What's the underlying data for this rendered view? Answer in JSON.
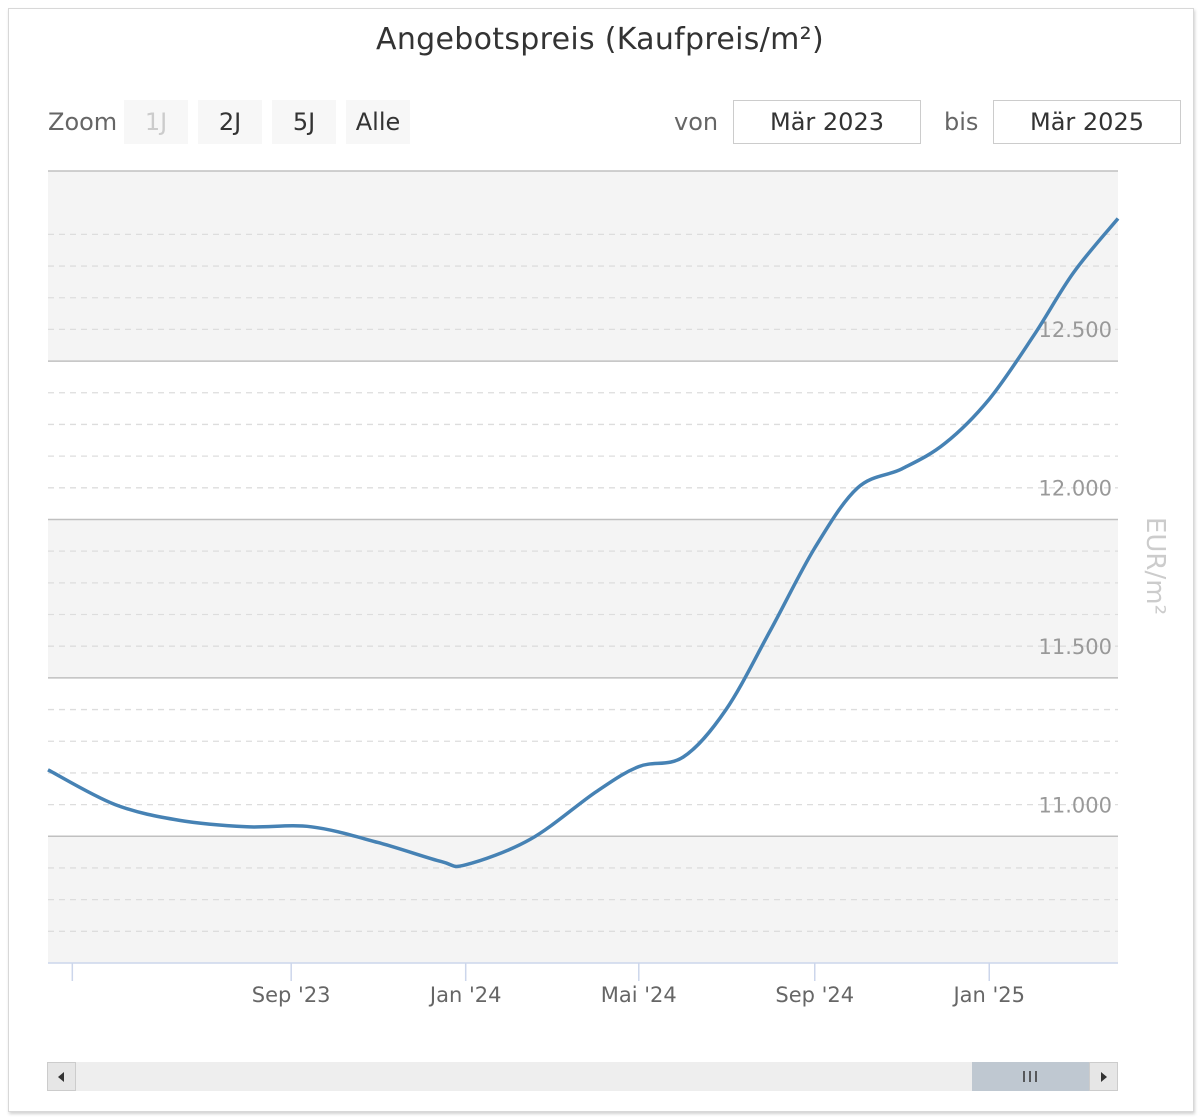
{
  "title": "Angebotspreis (Kaufpreis/m²)",
  "range_selector": {
    "zoom_label": "Zoom",
    "buttons": [
      {
        "label": "1J",
        "disabled": true
      },
      {
        "label": "2J",
        "disabled": false
      },
      {
        "label": "5J",
        "disabled": false
      },
      {
        "label": "Alle",
        "disabled": false
      }
    ],
    "from_label": "von",
    "from_value": "Mär 2023",
    "to_label": "bis",
    "to_value": "Mär 2025"
  },
  "colors": {
    "line": "#4682b4",
    "band": "#f4f4f4",
    "grid": "#dddddd",
    "band_border": "#c0c0c0",
    "axis_label": "#999999",
    "axis_title": "#cccccc"
  },
  "navigator": {
    "handle_icon": "grip-icon",
    "left_arrow_icon": "arrow-left-icon",
    "right_arrow_icon": "arrow-right-icon"
  },
  "chart_data": {
    "type": "line",
    "title": "Angebotspreis (Kaufpreis/m²)",
    "ylabel": "EUR/m²",
    "xlabel": "",
    "x_ticks": [
      "Sep '23",
      "Jan '24",
      "Mai '24",
      "Sep '24",
      "Jan '25"
    ],
    "y_ticks": [
      "11.000",
      "11.500",
      "12.000",
      "12.500"
    ],
    "ylim": [
      10600,
      13100
    ],
    "xlim": [
      "2023-03-15",
      "2025-04-01"
    ],
    "y_axis_position": "right",
    "grid": true,
    "legend": "none",
    "series": [
      {
        "points": [
          {
            "x": "2023-03-15",
            "y": 11210
          },
          {
            "x": "2023-05-01",
            "y": 11100
          },
          {
            "x": "2023-06-15",
            "y": 11050
          },
          {
            "x": "2023-08-01",
            "y": 11030
          },
          {
            "x": "2023-09-15",
            "y": 11030
          },
          {
            "x": "2023-11-01",
            "y": 10980
          },
          {
            "x": "2023-12-15",
            "y": 10920
          },
          {
            "x": "2024-01-01",
            "y": 10910
          },
          {
            "x": "2024-02-15",
            "y": 10990
          },
          {
            "x": "2024-04-01",
            "y": 11140
          },
          {
            "x": "2024-05-01",
            "y": 11220
          },
          {
            "x": "2024-06-01",
            "y": 11250
          },
          {
            "x": "2024-07-01",
            "y": 11400
          },
          {
            "x": "2024-08-01",
            "y": 11650
          },
          {
            "x": "2024-09-01",
            "y": 11910
          },
          {
            "x": "2024-10-01",
            "y": 12100
          },
          {
            "x": "2024-11-01",
            "y": 12160
          },
          {
            "x": "2024-12-01",
            "y": 12240
          },
          {
            "x": "2025-01-01",
            "y": 12380
          },
          {
            "x": "2025-02-01",
            "y": 12580
          },
          {
            "x": "2025-03-01",
            "y": 12780
          },
          {
            "x": "2025-04-01",
            "y": 12950
          }
        ]
      }
    ]
  }
}
